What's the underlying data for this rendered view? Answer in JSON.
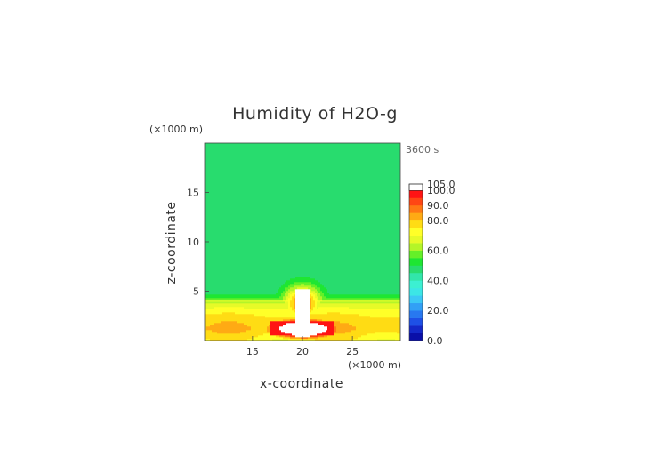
{
  "chart_data": {
    "type": "heatmap",
    "title": "Humidity of H2O-g",
    "time_label": "3600 s",
    "xlabel": "x-coordinate",
    "ylabel": "z-coordinate",
    "x_unit": "(×1000 m)",
    "y_unit": "(×1000 m)",
    "xlim": [
      10.2,
      29.8
    ],
    "ylim": [
      0,
      20
    ],
    "x_ticks": [
      15,
      20,
      25
    ],
    "y_ticks": [
      5,
      10,
      15
    ],
    "colorbar": {
      "labels": [
        "0.0",
        "20.0",
        "40.0",
        "60.0",
        "80.0",
        "90.0",
        "100.0",
        "105.0"
      ],
      "levels": [
        0,
        5,
        10,
        15,
        20,
        25,
        30,
        35,
        40,
        45,
        50,
        55,
        60,
        65,
        70,
        75,
        80,
        85,
        90,
        95,
        100,
        105
      ],
      "colors": [
        "#0a0fa8",
        "#1428c8",
        "#1e50e6",
        "#2878f0",
        "#32a0f5",
        "#3cc8f5",
        "#3ce6e6",
        "#3cf0d2",
        "#32e6aa",
        "#28dc6e",
        "#1ee632",
        "#64f028",
        "#b4f528",
        "#e6fa28",
        "#ffff28",
        "#ffdc14",
        "#ffaa14",
        "#ff7814",
        "#ff4614",
        "#ff1414",
        "#ffffff"
      ]
    },
    "field_summary": {
      "background_above_4km": 45,
      "boundary_layer_0_to_4km": 80,
      "cloud_core_near_x20_z1": 100,
      "saturated_plume_top_z_km": 5.2
    }
  }
}
